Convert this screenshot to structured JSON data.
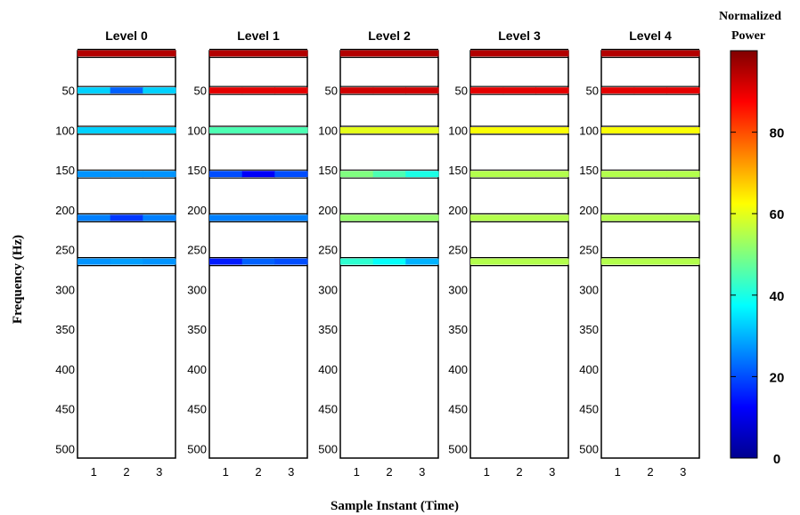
{
  "chart_data": {
    "type": "heatmap",
    "xlabel": "Sample Instant (Time)",
    "ylabel": "Frequency (Hz)",
    "colorbar": {
      "label_line1": "Normalized",
      "label_line2": "Power",
      "ticks": [
        "0",
        "20",
        "40",
        "60",
        "80"
      ],
      "tick_values": [
        0,
        20,
        40,
        60,
        80
      ],
      "range": [
        0,
        100
      ],
      "colormap": "jet"
    },
    "y_ticks": [
      "50",
      "100",
      "150",
      "200",
      "250",
      "300",
      "350",
      "400",
      "450",
      "500"
    ],
    "y_tick_values": [
      50,
      100,
      150,
      200,
      250,
      300,
      350,
      400,
      450,
      500
    ],
    "ylim": [
      0,
      512
    ],
    "x_ticks": [
      "1",
      "2",
      "3"
    ],
    "x_tick_values": [
      1,
      2,
      3
    ],
    "xlim": [
      0.5,
      3.5
    ],
    "bands_hz": [
      0,
      50,
      100,
      155,
      210,
      265
    ],
    "panels": [
      {
        "title": "Level 0",
        "powers": [
          [
            95,
            95,
            95
          ],
          [
            33,
            22,
            33
          ],
          [
            33,
            33,
            33
          ],
          [
            27,
            27,
            27
          ],
          [
            25,
            18,
            25
          ],
          [
            27,
            28,
            27
          ]
        ]
      },
      {
        "title": "Level 1",
        "powers": [
          [
            95,
            95,
            95
          ],
          [
            90,
            90,
            90
          ],
          [
            45,
            45,
            45
          ],
          [
            20,
            12,
            20
          ],
          [
            25,
            25,
            25
          ],
          [
            15,
            22,
            20
          ]
        ]
      },
      {
        "title": "Level 2",
        "powers": [
          [
            95,
            95,
            95
          ],
          [
            92,
            92,
            92
          ],
          [
            60,
            60,
            60
          ],
          [
            50,
            45,
            40
          ],
          [
            52,
            52,
            52
          ],
          [
            42,
            38,
            30
          ]
        ]
      },
      {
        "title": "Level 3",
        "powers": [
          [
            95,
            95,
            95
          ],
          [
            90,
            90,
            90
          ],
          [
            62,
            62,
            62
          ],
          [
            55,
            55,
            55
          ],
          [
            55,
            55,
            55
          ],
          [
            55,
            55,
            55
          ]
        ]
      },
      {
        "title": "Level 4",
        "powers": [
          [
            95,
            95,
            95
          ],
          [
            90,
            90,
            90
          ],
          [
            62,
            62,
            62
          ],
          [
            55,
            55,
            55
          ],
          [
            55,
            55,
            55
          ],
          [
            55,
            55,
            55
          ]
        ]
      }
    ]
  }
}
